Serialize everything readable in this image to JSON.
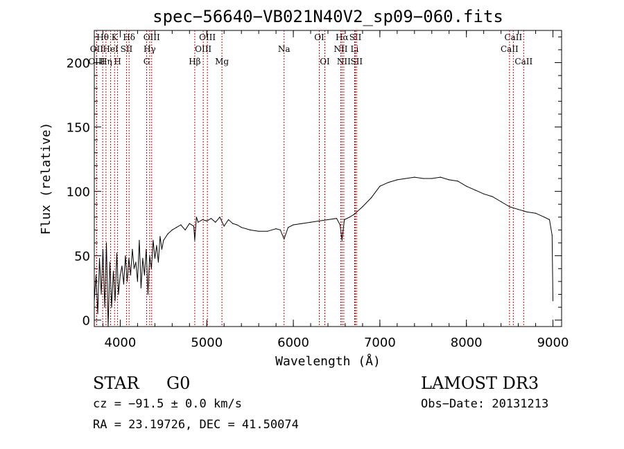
{
  "chart_data": {
    "type": "line",
    "title": "spec−56640−VB021N40V2_sp09−060.fits",
    "xlabel": "Wavelength (Å)",
    "ylabel": "Flux (relative)",
    "xlim": [
      3700,
      9100
    ],
    "ylim": [
      -5,
      225
    ],
    "x_ticks": [
      4000,
      5000,
      6000,
      7000,
      8000,
      9000
    ],
    "y_ticks": [
      0,
      50,
      100,
      150,
      200
    ],
    "series": [
      {
        "name": "Flux",
        "x": [
          3700,
          3720,
          3740,
          3760,
          3780,
          3800,
          3820,
          3840,
          3860,
          3880,
          3900,
          3920,
          3940,
          3960,
          3980,
          4000,
          4020,
          4040,
          4060,
          4080,
          4100,
          4120,
          4140,
          4160,
          4180,
          4200,
          4220,
          4240,
          4260,
          4280,
          4300,
          4320,
          4340,
          4360,
          4380,
          4400,
          4420,
          4440,
          4460,
          4480,
          4500,
          4550,
          4600,
          4650,
          4700,
          4750,
          4800,
          4850,
          4861,
          4880,
          4900,
          4950,
          5000,
          5050,
          5100,
          5150,
          5200,
          5250,
          5300,
          5350,
          5400,
          5500,
          5600,
          5700,
          5800,
          5850,
          5893,
          5940,
          6000,
          6100,
          6200,
          6300,
          6400,
          6500,
          6540,
          6563,
          6590,
          6650,
          6700,
          6800,
          6900,
          7000,
          7100,
          7200,
          7300,
          7400,
          7500,
          7600,
          7700,
          7800,
          7900,
          8000,
          8100,
          8200,
          8300,
          8400,
          8500,
          8600,
          8700,
          8800,
          8900,
          8960,
          8990,
          9000
        ],
        "values": [
          15,
          35,
          5,
          48,
          20,
          55,
          10,
          60,
          -5,
          45,
          10,
          38,
          15,
          52,
          20,
          35,
          42,
          28,
          50,
          30,
          48,
          35,
          55,
          40,
          45,
          30,
          62,
          25,
          48,
          35,
          55,
          20,
          50,
          40,
          62,
          48,
          58,
          45,
          65,
          55,
          62,
          67,
          70,
          72,
          74,
          70,
          75,
          73,
          62,
          80,
          76,
          78,
          77,
          79,
          76,
          80,
          73,
          78,
          75,
          74,
          72,
          70,
          69,
          69,
          71,
          70,
          63,
          72,
          74,
          75,
          76,
          77,
          78,
          79,
          74,
          62,
          78,
          80,
          82,
          88,
          95,
          104,
          107,
          109,
          110,
          111,
          110,
          110,
          111,
          109,
          108,
          104,
          101,
          98,
          96,
          92,
          88,
          86,
          84,
          83,
          80,
          78,
          66,
          15
        ]
      }
    ],
    "lines": [
      {
        "label": "Hθ",
        "wl": 3797,
        "row": 1
      },
      {
        "label": "OII",
        "wl": 3727,
        "row": 2
      },
      {
        "label": "OIII",
        "wl": 3727,
        "row": 3
      },
      {
        "label": "K",
        "wl": 3934,
        "row": 1
      },
      {
        "label": "HeI",
        "wl": 3889,
        "row": 2
      },
      {
        "label": "Hη",
        "wl": 3835,
        "row": 3
      },
      {
        "label": "H",
        "wl": 3969,
        "row": 3
      },
      {
        "label": "Hδ",
        "wl": 4102,
        "row": 1
      },
      {
        "label": "SII",
        "wl": 4072,
        "row": 2
      },
      {
        "label": "OIII",
        "wl": 4363,
        "row": 1
      },
      {
        "label": "Hγ",
        "wl": 4340,
        "row": 2
      },
      {
        "label": "G",
        "wl": 4305,
        "row": 3
      },
      {
        "label": "Hβ",
        "wl": 4861,
        "row": 3
      },
      {
        "label": "OIII",
        "wl": 5007,
        "row": 1
      },
      {
        "label": "OIII",
        "wl": 4959,
        "row": 2
      },
      {
        "label": "Mg",
        "wl": 5175,
        "row": 3
      },
      {
        "label": "Na",
        "wl": 5893,
        "row": 2
      },
      {
        "label": "OI",
        "wl": 6300,
        "row": 1
      },
      {
        "label": "OI",
        "wl": 6364,
        "row": 3
      },
      {
        "label": "Hα",
        "wl": 6563,
        "row": 1
      },
      {
        "label": "SII",
        "wl": 6717,
        "row": 1
      },
      {
        "label": "NII",
        "wl": 6548,
        "row": 2
      },
      {
        "label": "Li",
        "wl": 6708,
        "row": 2
      },
      {
        "label": "NII",
        "wl": 6583,
        "row": 3
      },
      {
        "label": "SII",
        "wl": 6731,
        "row": 3
      },
      {
        "label": "CaII",
        "wl": 8542,
        "row": 1
      },
      {
        "label": "CaII",
        "wl": 8498,
        "row": 2
      },
      {
        "label": "CaII",
        "wl": 8662,
        "row": 3
      }
    ],
    "line_color": "#cc0000"
  },
  "info": {
    "class_label": "STAR",
    "subclass": "G0",
    "survey": "LAMOST DR3",
    "redshift": "cz = −91.5 ± 0.0 km/s",
    "obs_date": "Obs−Date: 20131213",
    "coords": "RA =  23.19726, DEC =  41.50074"
  }
}
